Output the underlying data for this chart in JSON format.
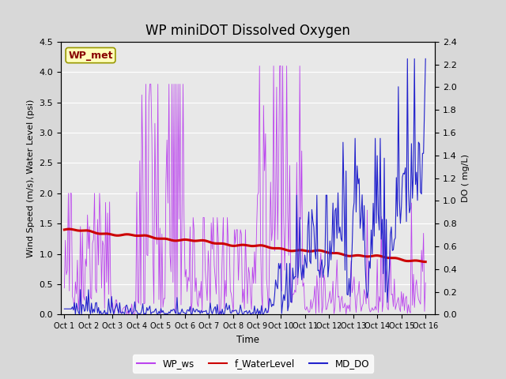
{
  "title": "WP miniDOT Dissolved Oxygen",
  "xlabel": "Time",
  "ylabel_left": "Wind Speed (m/s), Water Level (psi)",
  "ylabel_right": "DO ( mg/L)",
  "ylim_left": [
    0,
    4.5
  ],
  "ylim_right": [
    0.0,
    2.4
  ],
  "yticks_left": [
    0.0,
    0.5,
    1.0,
    1.5,
    2.0,
    2.5,
    3.0,
    3.5,
    4.0,
    4.5
  ],
  "yticks_right": [
    0.0,
    0.2,
    0.4,
    0.6,
    0.8,
    1.0,
    1.2,
    1.4,
    1.6,
    1.8,
    2.0,
    2.2,
    2.4
  ],
  "fig_bg_color": "#d8d8d8",
  "plot_bg_color": "#e8e8e8",
  "wp_ws_color": "#bb44ee",
  "f_water_color": "#cc0000",
  "md_do_color": "#2222cc",
  "legend_labels": [
    "WP_ws",
    "f_WaterLevel",
    "MD_DO"
  ],
  "annotation_text": "WP_met",
  "annotation_color": "#880000",
  "annotation_bg": "#ffffbb",
  "annotation_border": "#999900",
  "x_tick_labels": [
    "Oct 1",
    "Oct 2",
    "Oct 3",
    "Oct 4",
    "Oct 5",
    "Oct 6",
    "Oct 7",
    "Oct 8",
    "Oct 9",
    "Oct 10",
    "Oct 11",
    "Oct 12",
    "Oct 13",
    "Oct 14",
    "Oct 15",
    "Oct 16"
  ],
  "seed": 42
}
